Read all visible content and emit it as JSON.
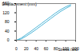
{
  "chart_data": {
    "type": "line",
    "x_label": "Stress (kN)",
    "y_label": "Displacement (mm)",
    "x": [
      0,
      10,
      20,
      30,
      40,
      50,
      60,
      70,
      80,
      90,
      100,
      110
    ],
    "series": [
      {
        "color": "#4fb6d8",
        "values": [
          0,
          10,
          25,
          40,
          56,
          72,
          88,
          104,
          120,
          134,
          146,
          155
        ]
      },
      {
        "color": "#4fb6d8",
        "values": [
          0,
          6,
          18,
          32,
          47,
          63,
          79,
          95,
          111,
          126,
          139,
          150
        ]
      }
    ],
    "xlim": [
      0,
      120
    ],
    "xticks": [
      0,
      20,
      40,
      60,
      80,
      100,
      120
    ],
    "ylim": [
      0,
      160
    ],
    "yticks": [
      0,
      40,
      80,
      120,
      160
    ],
    "grid": false
  }
}
